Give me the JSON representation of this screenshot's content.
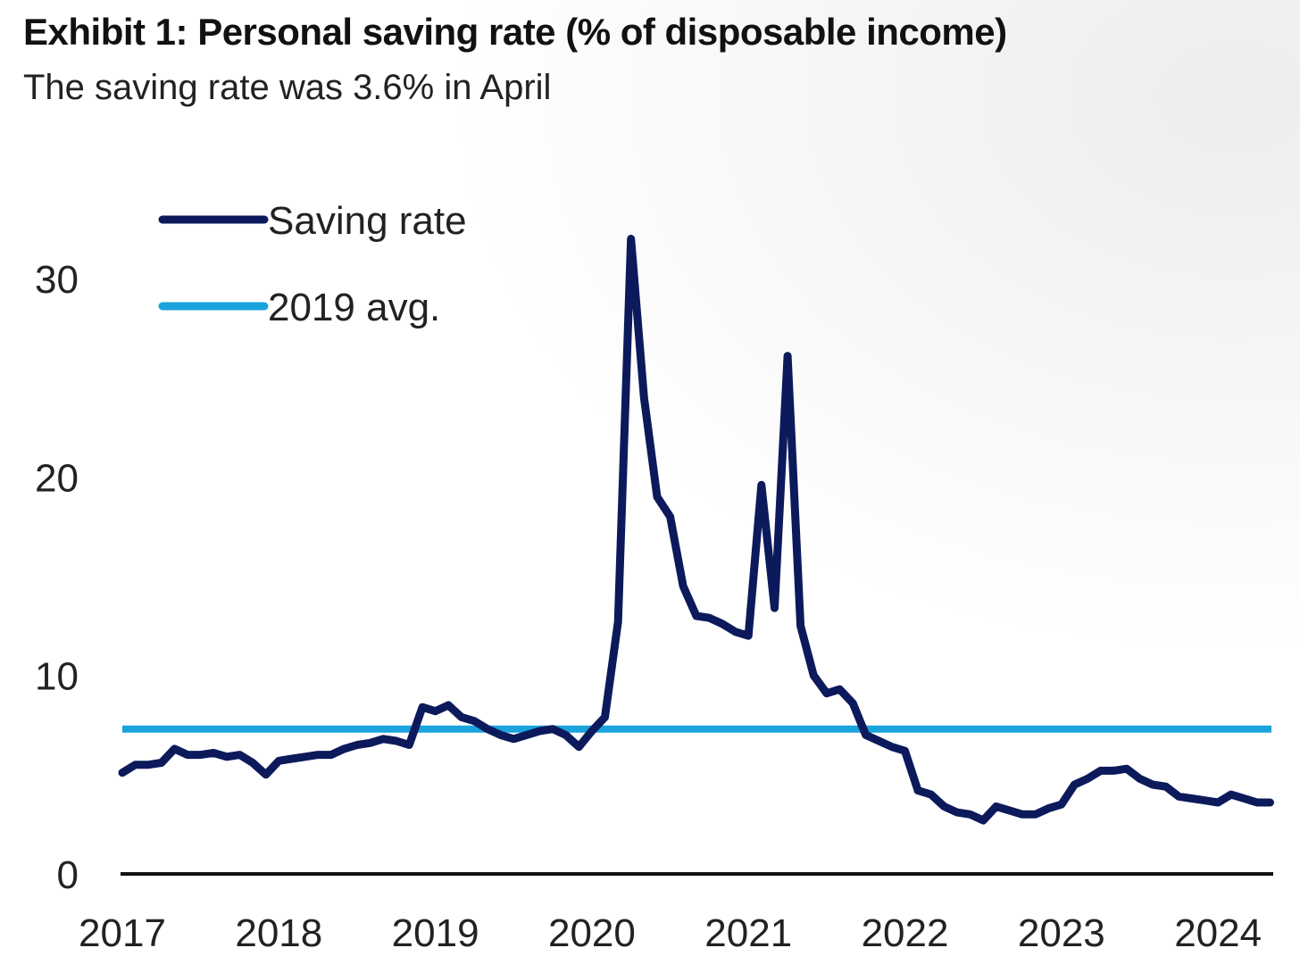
{
  "header": {
    "title": "Exhibit 1: Personal saving rate (% of disposable income)",
    "subtitle": "The saving rate was 3.6% in April"
  },
  "colors": {
    "saving_rate": "#0c1a5c",
    "avg_2019": "#1aa3dc",
    "axis": "#111111",
    "text": "#222222"
  },
  "chart_data": {
    "type": "line",
    "title": "Exhibit 1: Personal saving rate (% of disposable income)",
    "subtitle": "The saving rate was 3.6% in April",
    "xlabel": "",
    "ylabel": "",
    "ylim": [
      0,
      33
    ],
    "xlim": [
      2017.0,
      2024.33
    ],
    "y_ticks": [
      0,
      10,
      20,
      30
    ],
    "x_ticks": [
      2017,
      2018,
      2019,
      2020,
      2021,
      2022,
      2023,
      2024
    ],
    "grid": false,
    "legend_position": "top-left",
    "series": [
      {
        "name": "Saving rate",
        "style": "line",
        "color": "#0c1a5c",
        "x": [
          2017.0,
          2017.083,
          2017.167,
          2017.25,
          2017.333,
          2017.417,
          2017.5,
          2017.583,
          2017.667,
          2017.75,
          2017.833,
          2017.917,
          2018.0,
          2018.083,
          2018.167,
          2018.25,
          2018.333,
          2018.417,
          2018.5,
          2018.583,
          2018.667,
          2018.75,
          2018.833,
          2018.917,
          2019.0,
          2019.083,
          2019.167,
          2019.25,
          2019.333,
          2019.417,
          2019.5,
          2019.583,
          2019.667,
          2019.75,
          2019.833,
          2019.917,
          2020.0,
          2020.083,
          2020.167,
          2020.25,
          2020.333,
          2020.417,
          2020.5,
          2020.583,
          2020.667,
          2020.75,
          2020.833,
          2020.917,
          2021.0,
          2021.083,
          2021.167,
          2021.25,
          2021.333,
          2021.417,
          2021.5,
          2021.583,
          2021.667,
          2021.75,
          2021.833,
          2021.917,
          2022.0,
          2022.083,
          2022.167,
          2022.25,
          2022.333,
          2022.417,
          2022.5,
          2022.583,
          2022.667,
          2022.75,
          2022.833,
          2022.917,
          2023.0,
          2023.083,
          2023.167,
          2023.25,
          2023.333,
          2023.417,
          2023.5,
          2023.583,
          2023.667,
          2023.75,
          2023.833,
          2023.917,
          2024.0,
          2024.083,
          2024.167,
          2024.25,
          2024.333
        ],
        "y": [
          5.1,
          5.5,
          5.5,
          5.6,
          6.3,
          6.0,
          6.0,
          6.1,
          5.9,
          6.0,
          5.6,
          5.0,
          5.7,
          5.8,
          5.9,
          6.0,
          6.0,
          6.3,
          6.5,
          6.6,
          6.8,
          6.7,
          6.5,
          8.4,
          8.2,
          8.5,
          7.9,
          7.7,
          7.3,
          7.0,
          6.8,
          7.0,
          7.2,
          7.3,
          7.0,
          6.4,
          7.2,
          7.9,
          12.7,
          32.0,
          24.0,
          19.0,
          18.0,
          14.5,
          13.0,
          12.9,
          12.6,
          12.2,
          12.0,
          19.6,
          13.4,
          26.1,
          12.5,
          10.0,
          9.1,
          9.3,
          8.6,
          7.0,
          6.7,
          6.4,
          6.2,
          4.2,
          4.0,
          3.4,
          3.1,
          3.0,
          2.7,
          3.4,
          3.2,
          3.0,
          3.0,
          3.3,
          3.5,
          4.5,
          4.8,
          5.2,
          5.2,
          5.3,
          4.8,
          4.5,
          4.4,
          3.9,
          3.8,
          3.7,
          3.6,
          4.0,
          3.8,
          3.6,
          3.6
        ]
      },
      {
        "name": "2019 avg.",
        "style": "hline",
        "color": "#1aa3dc",
        "value": 7.3
      }
    ]
  }
}
